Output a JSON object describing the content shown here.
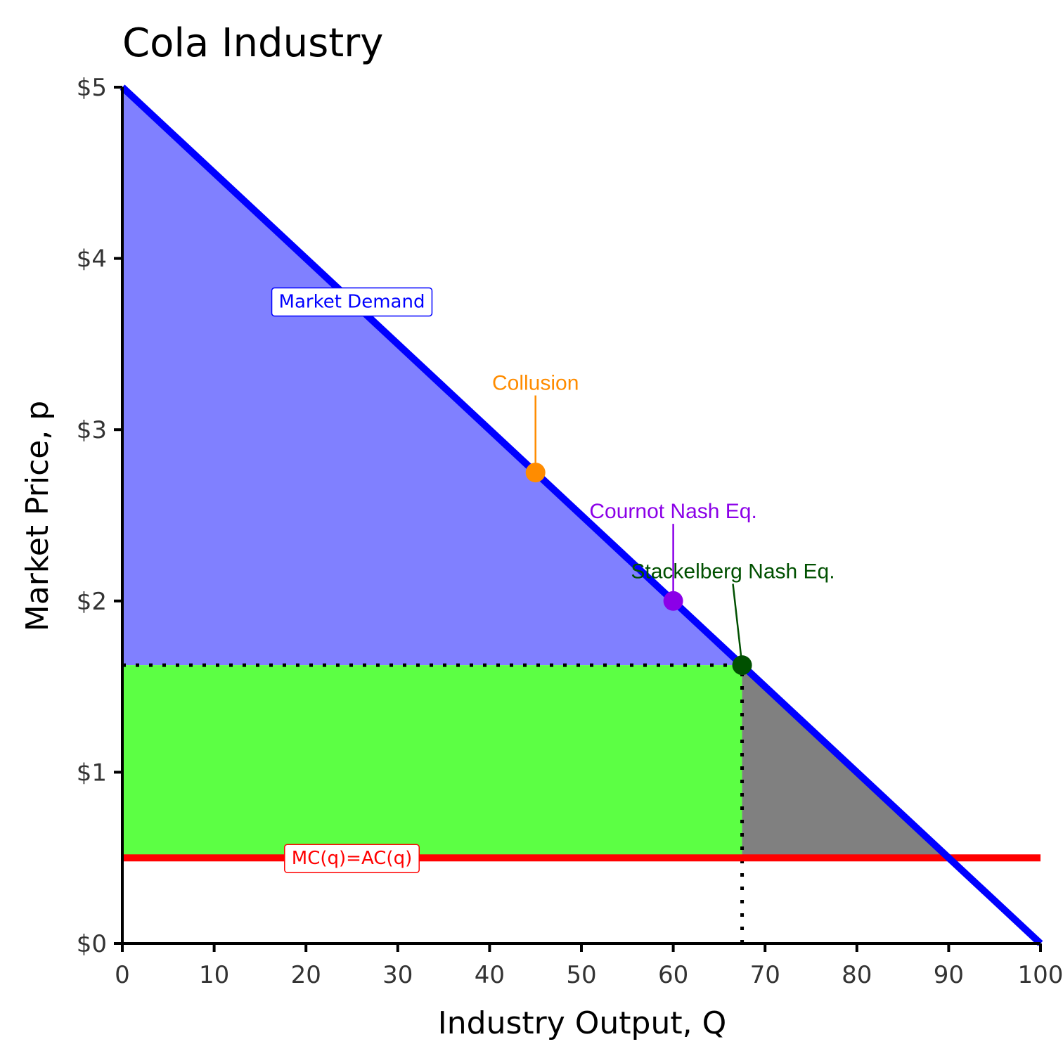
{
  "chart_data": {
    "type": "line",
    "title": "Cola Industry",
    "xlabel": "Industry Output, Q",
    "ylabel": "Market Price, p",
    "xlim": [
      0,
      100
    ],
    "ylim": [
      0,
      5
    ],
    "x_ticks": [
      0,
      10,
      20,
      30,
      40,
      50,
      60,
      70,
      80,
      90,
      100
    ],
    "x_tick_labels": [
      "0",
      "10",
      "20",
      "30",
      "40",
      "50",
      "60",
      "70",
      "80",
      "90",
      "100"
    ],
    "y_ticks": [
      0,
      1,
      2,
      3,
      4,
      5
    ],
    "y_tick_labels": [
      "$0",
      "$1",
      "$2",
      "$3",
      "$4",
      "$5"
    ],
    "grid": false,
    "series": [
      {
        "name": "Market Demand",
        "color": "#0000ff",
        "x": [
          0,
          100
        ],
        "y": [
          5,
          0
        ],
        "label_at": [
          25,
          3.75
        ]
      },
      {
        "name": "MC(q)=AC(q)",
        "color": "#ff0000",
        "x": [
          0,
          100
        ],
        "y": [
          0.5,
          0.5
        ],
        "label_at": [
          25,
          0.5
        ]
      }
    ],
    "regions": [
      {
        "name": "consumer-surplus",
        "color": "#8080ff",
        "polygon": [
          [
            0,
            5
          ],
          [
            67.5,
            1.625
          ],
          [
            0,
            1.625
          ]
        ]
      },
      {
        "name": "producer-surplus",
        "color": "#5cff44",
        "polygon": [
          [
            0,
            1.625
          ],
          [
            67.5,
            1.625
          ],
          [
            67.5,
            0.5
          ],
          [
            0,
            0.5
          ]
        ]
      },
      {
        "name": "deadweight-loss",
        "color": "#808080",
        "polygon": [
          [
            67.5,
            1.625
          ],
          [
            90,
            0.5
          ],
          [
            67.5,
            0.5
          ]
        ]
      }
    ],
    "reference_lines": [
      {
        "name": "price-guide",
        "x": [
          0,
          67.5
        ],
        "y": [
          1.625,
          1.625
        ]
      },
      {
        "name": "quantity-guide",
        "x": [
          67.5,
          67.5
        ],
        "y": [
          0,
          1.625
        ]
      }
    ],
    "points": [
      {
        "name": "Collusion",
        "x": 45,
        "y": 2.75,
        "color": "#ff8c00",
        "label_at": [
          45,
          3.2
        ]
      },
      {
        "name": "Cournot Nash Eq.",
        "x": 60,
        "y": 2,
        "color": "#8b00e8",
        "label_at": [
          60,
          2.45
        ]
      },
      {
        "name": "Stackelberg Nash Eq.",
        "x": 67.5,
        "y": 1.625,
        "color": "#005000",
        "label_at": [
          66.5,
          2.1
        ]
      }
    ]
  }
}
